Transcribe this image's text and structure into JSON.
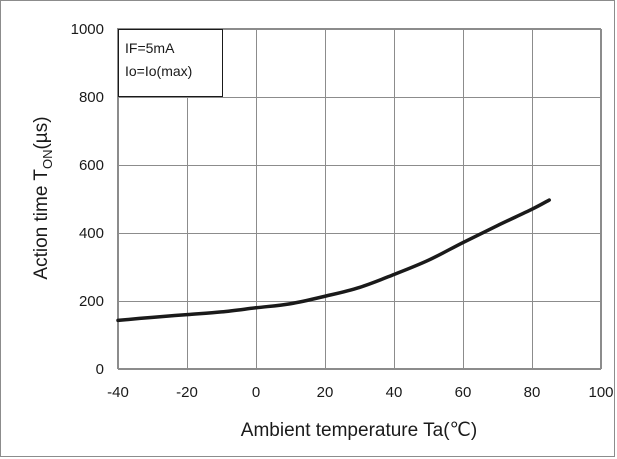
{
  "chart_data": {
    "type": "line",
    "xlabel": "Ambient temperature Ta(℃)",
    "ylabel": {
      "main": "Action time T",
      "subscript": "ON",
      "unit": "(µs)"
    },
    "xlim": [
      -40,
      100
    ],
    "ylim": [
      0,
      1000
    ],
    "x_ticks": [
      -40,
      -20,
      0,
      20,
      40,
      60,
      80,
      100
    ],
    "y_ticks": [
      0,
      200,
      400,
      600,
      800,
      1000
    ],
    "grid": true,
    "legend_position": "top-left",
    "annotations": [
      "IF=5mA",
      "Io=Io(max)"
    ],
    "series": [
      {
        "color": "#1a1a1a",
        "points": [
          [
            -40,
            143
          ],
          [
            -30,
            152
          ],
          [
            -20,
            160
          ],
          [
            -10,
            168
          ],
          [
            0,
            180
          ],
          [
            10,
            192
          ],
          [
            20,
            214
          ],
          [
            30,
            240
          ],
          [
            40,
            278
          ],
          [
            50,
            320
          ],
          [
            60,
            372
          ],
          [
            70,
            422
          ],
          [
            80,
            470
          ],
          [
            85,
            497
          ]
        ]
      }
    ]
  }
}
